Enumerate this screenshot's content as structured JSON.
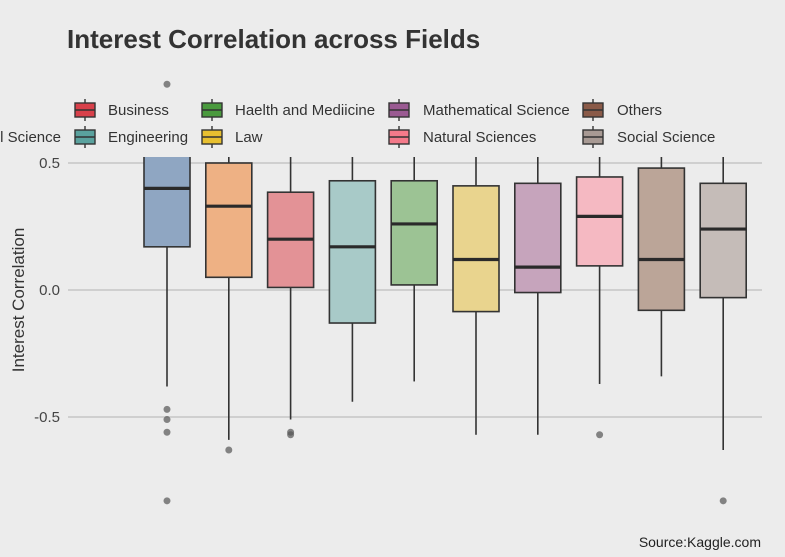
{
  "chart_data": {
    "type": "box",
    "title": "Interest Correlation across Fields",
    "xlabel": "",
    "ylabel": "Interest Correlation",
    "ylim": [
      -0.86,
      0.83
    ],
    "yticks": [
      -0.5,
      0.0,
      0.5
    ],
    "ytick_labels": [
      "-0.5",
      "0.0",
      "0.5"
    ],
    "grid": "horizontal",
    "legend_position": "top",
    "caption": "Source:Kaggle.com",
    "series": [
      {
        "name": "",
        "color": "#8fa6c2",
        "key_color": "#6f8fb8",
        "q1": 0.17,
        "median": 0.4,
        "q3": 0.56,
        "whisker_low": -0.38,
        "whisker_high": 0.76,
        "outliers": [
          -0.47,
          -0.51,
          -0.56,
          -0.83,
          0.81
        ]
      },
      {
        "name": "l Science",
        "color": "#eeb184",
        "key_color": "#e8904c",
        "q1": 0.05,
        "median": 0.33,
        "q3": 0.5,
        "whisker_low": -0.59,
        "whisker_high": 0.6,
        "outliers": [
          -0.63
        ]
      },
      {
        "name": "Business",
        "color": "#e39296",
        "key_color": "#d8404a",
        "q1": 0.01,
        "median": 0.2,
        "q3": 0.385,
        "whisker_low": -0.51,
        "whisker_high": 0.6,
        "outliers": [
          -0.56,
          -0.57
        ]
      },
      {
        "name": "Engineering",
        "color": "#a8cac8",
        "key_color": "#5aa29e",
        "q1": -0.13,
        "median": 0.17,
        "q3": 0.43,
        "whisker_low": -0.44,
        "whisker_high": 0.6,
        "outliers": []
      },
      {
        "name": "Haelth and Mediicine",
        "color": "#9cc394",
        "key_color": "#4a9a3e",
        "q1": 0.02,
        "median": 0.26,
        "q3": 0.43,
        "whisker_low": -0.36,
        "whisker_high": 0.6,
        "outliers": []
      },
      {
        "name": "Law",
        "color": "#e9d48e",
        "key_color": "#e8c030",
        "q1": -0.085,
        "median": 0.12,
        "q3": 0.41,
        "whisker_low": -0.57,
        "whisker_high": 0.6,
        "outliers": []
      },
      {
        "name": "Mathematical Science",
        "color": "#c6a4bc",
        "key_color": "#9a5a92",
        "q1": -0.01,
        "median": 0.09,
        "q3": 0.42,
        "whisker_low": -0.57,
        "whisker_high": 0.6,
        "outliers": []
      },
      {
        "name": "Natural Sciences",
        "color": "#f5b9c2",
        "key_color": "#f47a8a",
        "q1": 0.095,
        "median": 0.29,
        "q3": 0.445,
        "whisker_low": -0.37,
        "whisker_high": 0.6,
        "outliers": [
          -0.57
        ]
      },
      {
        "name": "Others",
        "color": "#bba598",
        "key_color": "#8a5a48",
        "q1": -0.08,
        "median": 0.12,
        "q3": 0.48,
        "whisker_low": -0.34,
        "whisker_high": 0.6,
        "outliers": []
      },
      {
        "name": "Social Science",
        "color": "#c5bcb8",
        "key_color": "#a89a94",
        "q1": -0.03,
        "median": 0.24,
        "q3": 0.42,
        "whisker_low": -0.63,
        "whisker_high": 0.6,
        "outliers": [
          -0.83
        ]
      }
    ]
  }
}
